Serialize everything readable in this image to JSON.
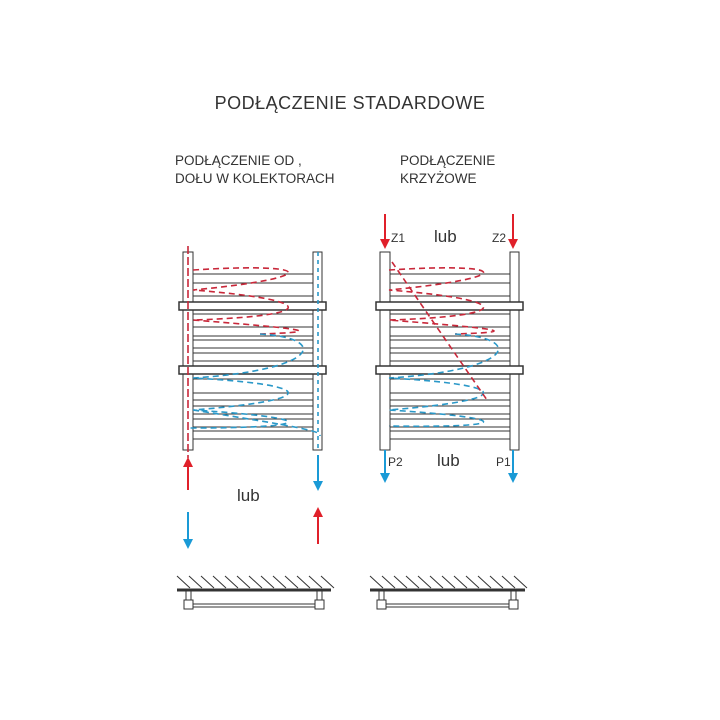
{
  "title": "PODŁĄCZENIE STADARDOWE",
  "left": {
    "subtitle_line1": "PODŁĄCZENIE OD ,",
    "subtitle_line2": "DOŁU W KOLEKTORACH",
    "or_label": "lub"
  },
  "right": {
    "subtitle_line1": "PODŁĄCZENIE",
    "subtitle_line2": "KRZYŻOWE",
    "or_top": "lub",
    "or_bottom": "lub",
    "z1": "Z1",
    "z2": "Z2",
    "p1": "P1",
    "p2": "P2"
  },
  "colors": {
    "supply": "#e0202a",
    "return": "#1a9ad6",
    "supply_flow": "#c8283a",
    "return_flow": "#2a98c8",
    "outline": "#333333"
  }
}
